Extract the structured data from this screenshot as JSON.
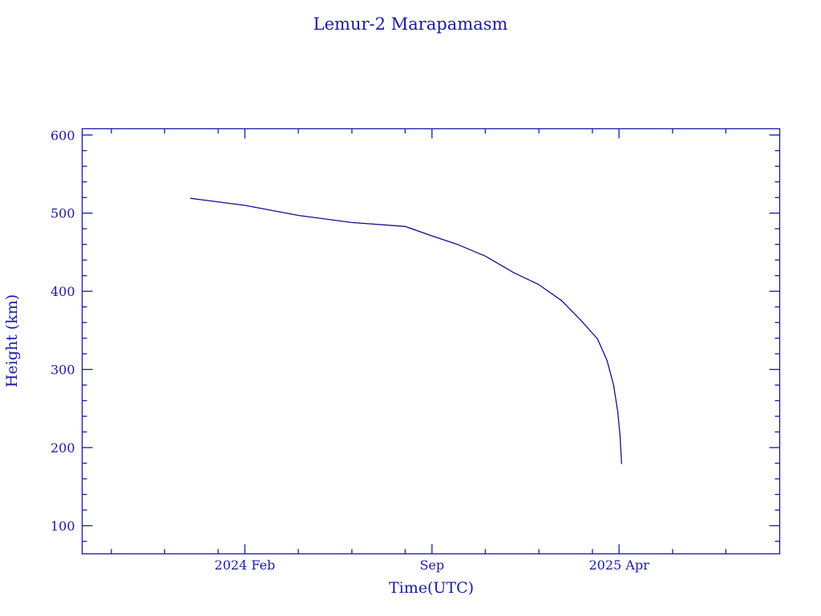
{
  "chart_data": {
    "type": "line",
    "title": "Lemur-2 Marapamasm",
    "xlabel": "Time(UTC)",
    "ylabel": "Height (km)",
    "x_units": "decimal year",
    "xlim": [
      2023.576,
      2025.751
    ],
    "ylim": [
      64,
      608
    ],
    "yticks": [
      100,
      200,
      300,
      400,
      500,
      600
    ],
    "yminor_step": 20,
    "xticks": [
      {
        "value": 2024.0833,
        "label": "2024 Feb"
      },
      {
        "value": 2024.6667,
        "label": "Sep"
      },
      {
        "value": 2025.25,
        "label": "2025 Apr"
      }
    ],
    "xminor": [
      2023.667,
      2023.833,
      2024.0,
      2024.25,
      2024.417,
      2024.583,
      2024.833,
      2025.0,
      2025.167,
      2025.417,
      2025.583
    ],
    "grid": false,
    "color": "#1a1aa6",
    "series": [
      {
        "name": "Height",
        "x": [
          2023.913,
          2024.083,
          2024.251,
          2024.416,
          2024.583,
          2024.666,
          2024.746,
          2024.833,
          2024.921,
          2024.998,
          2025.071,
          2025.133,
          2025.183,
          2025.213,
          2025.233,
          2025.246,
          2025.253,
          2025.258
        ],
        "y": [
          519,
          510,
          497,
          488,
          483,
          471,
          460,
          445,
          424,
          409,
          388,
          362,
          339,
          311,
          280,
          246,
          216,
          179
        ]
      }
    ]
  }
}
